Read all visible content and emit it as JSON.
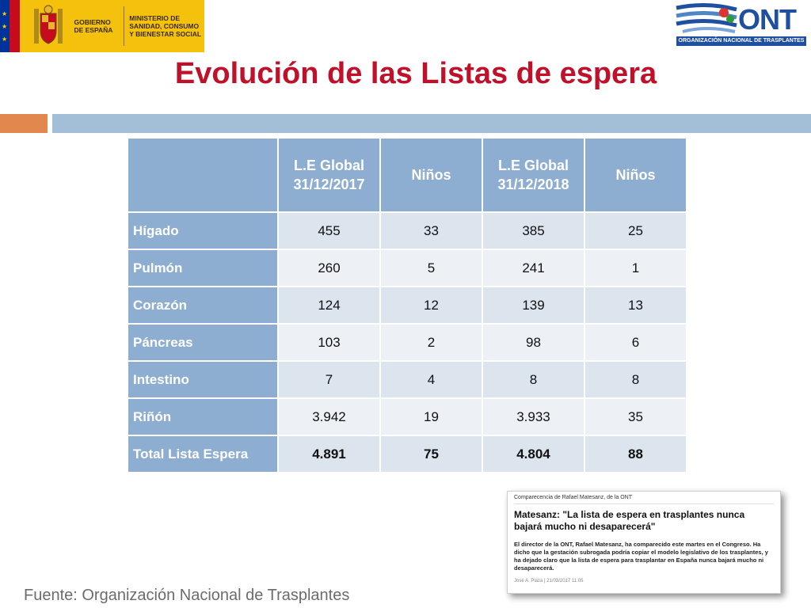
{
  "header": {
    "gov_text_1": "Gobierno de España",
    "gov_text_2": "Ministerio de Sanidad, Consumo y Bienestar Social",
    "ont_logo_word": "ONT",
    "ont_logo_subtitle": "ORGANIZACIÓN NACIONAL DE TRASPLANTES"
  },
  "title": "Evolución de las Listas de espera",
  "table": {
    "headers": [
      "",
      "L.E Global 31/12/2017",
      "Niños",
      "L.E Global 31/12/2018",
      "Niños"
    ],
    "rows": [
      {
        "label": "Hígado",
        "values": [
          "455",
          "33",
          "385",
          "25"
        ]
      },
      {
        "label": "Pulmón",
        "values": [
          "260",
          "5",
          "241",
          "1"
        ]
      },
      {
        "label": "Corazón",
        "values": [
          "124",
          "12",
          "139",
          "13"
        ]
      },
      {
        "label": "Páncreas",
        "values": [
          "103",
          "2",
          "98",
          "6"
        ]
      },
      {
        "label": "Intestino",
        "values": [
          "7",
          "4",
          "8",
          "8"
        ]
      },
      {
        "label": "Riñón",
        "values": [
          "3.942",
          "19",
          "3.933",
          "35"
        ]
      },
      {
        "label": "Total Lista Espera",
        "values": [
          "4.891",
          "75",
          "4.804",
          "88"
        ]
      }
    ]
  },
  "news": {
    "kicker": "Comparecencia de Rafael Matesanz, de la ONT",
    "headline": "Matesanz: \"La lista de espera en trasplantes nunca bajará mucho ni desaparecerá\"",
    "body": "El director de la ONT, Rafael Matesanz, ha comparecido este martes en el Congreso. Ha dicho que la gestación subrogada podría copiar el modelo legislativo de los trasplantes, y ha dejado claro que la lista de espera para trasplantar en España nunca bajará mucho ni desaparecerá.",
    "byline": "José A. Plaza  |  21/03/2017 11:05"
  },
  "source": "Fuente: Organización Nacional de Trasplantes",
  "colors": {
    "title": "#c0102a",
    "header_fill": "#8eaed1",
    "accent_orange": "#e2884f",
    "accent_blue": "#a3bfd8"
  }
}
